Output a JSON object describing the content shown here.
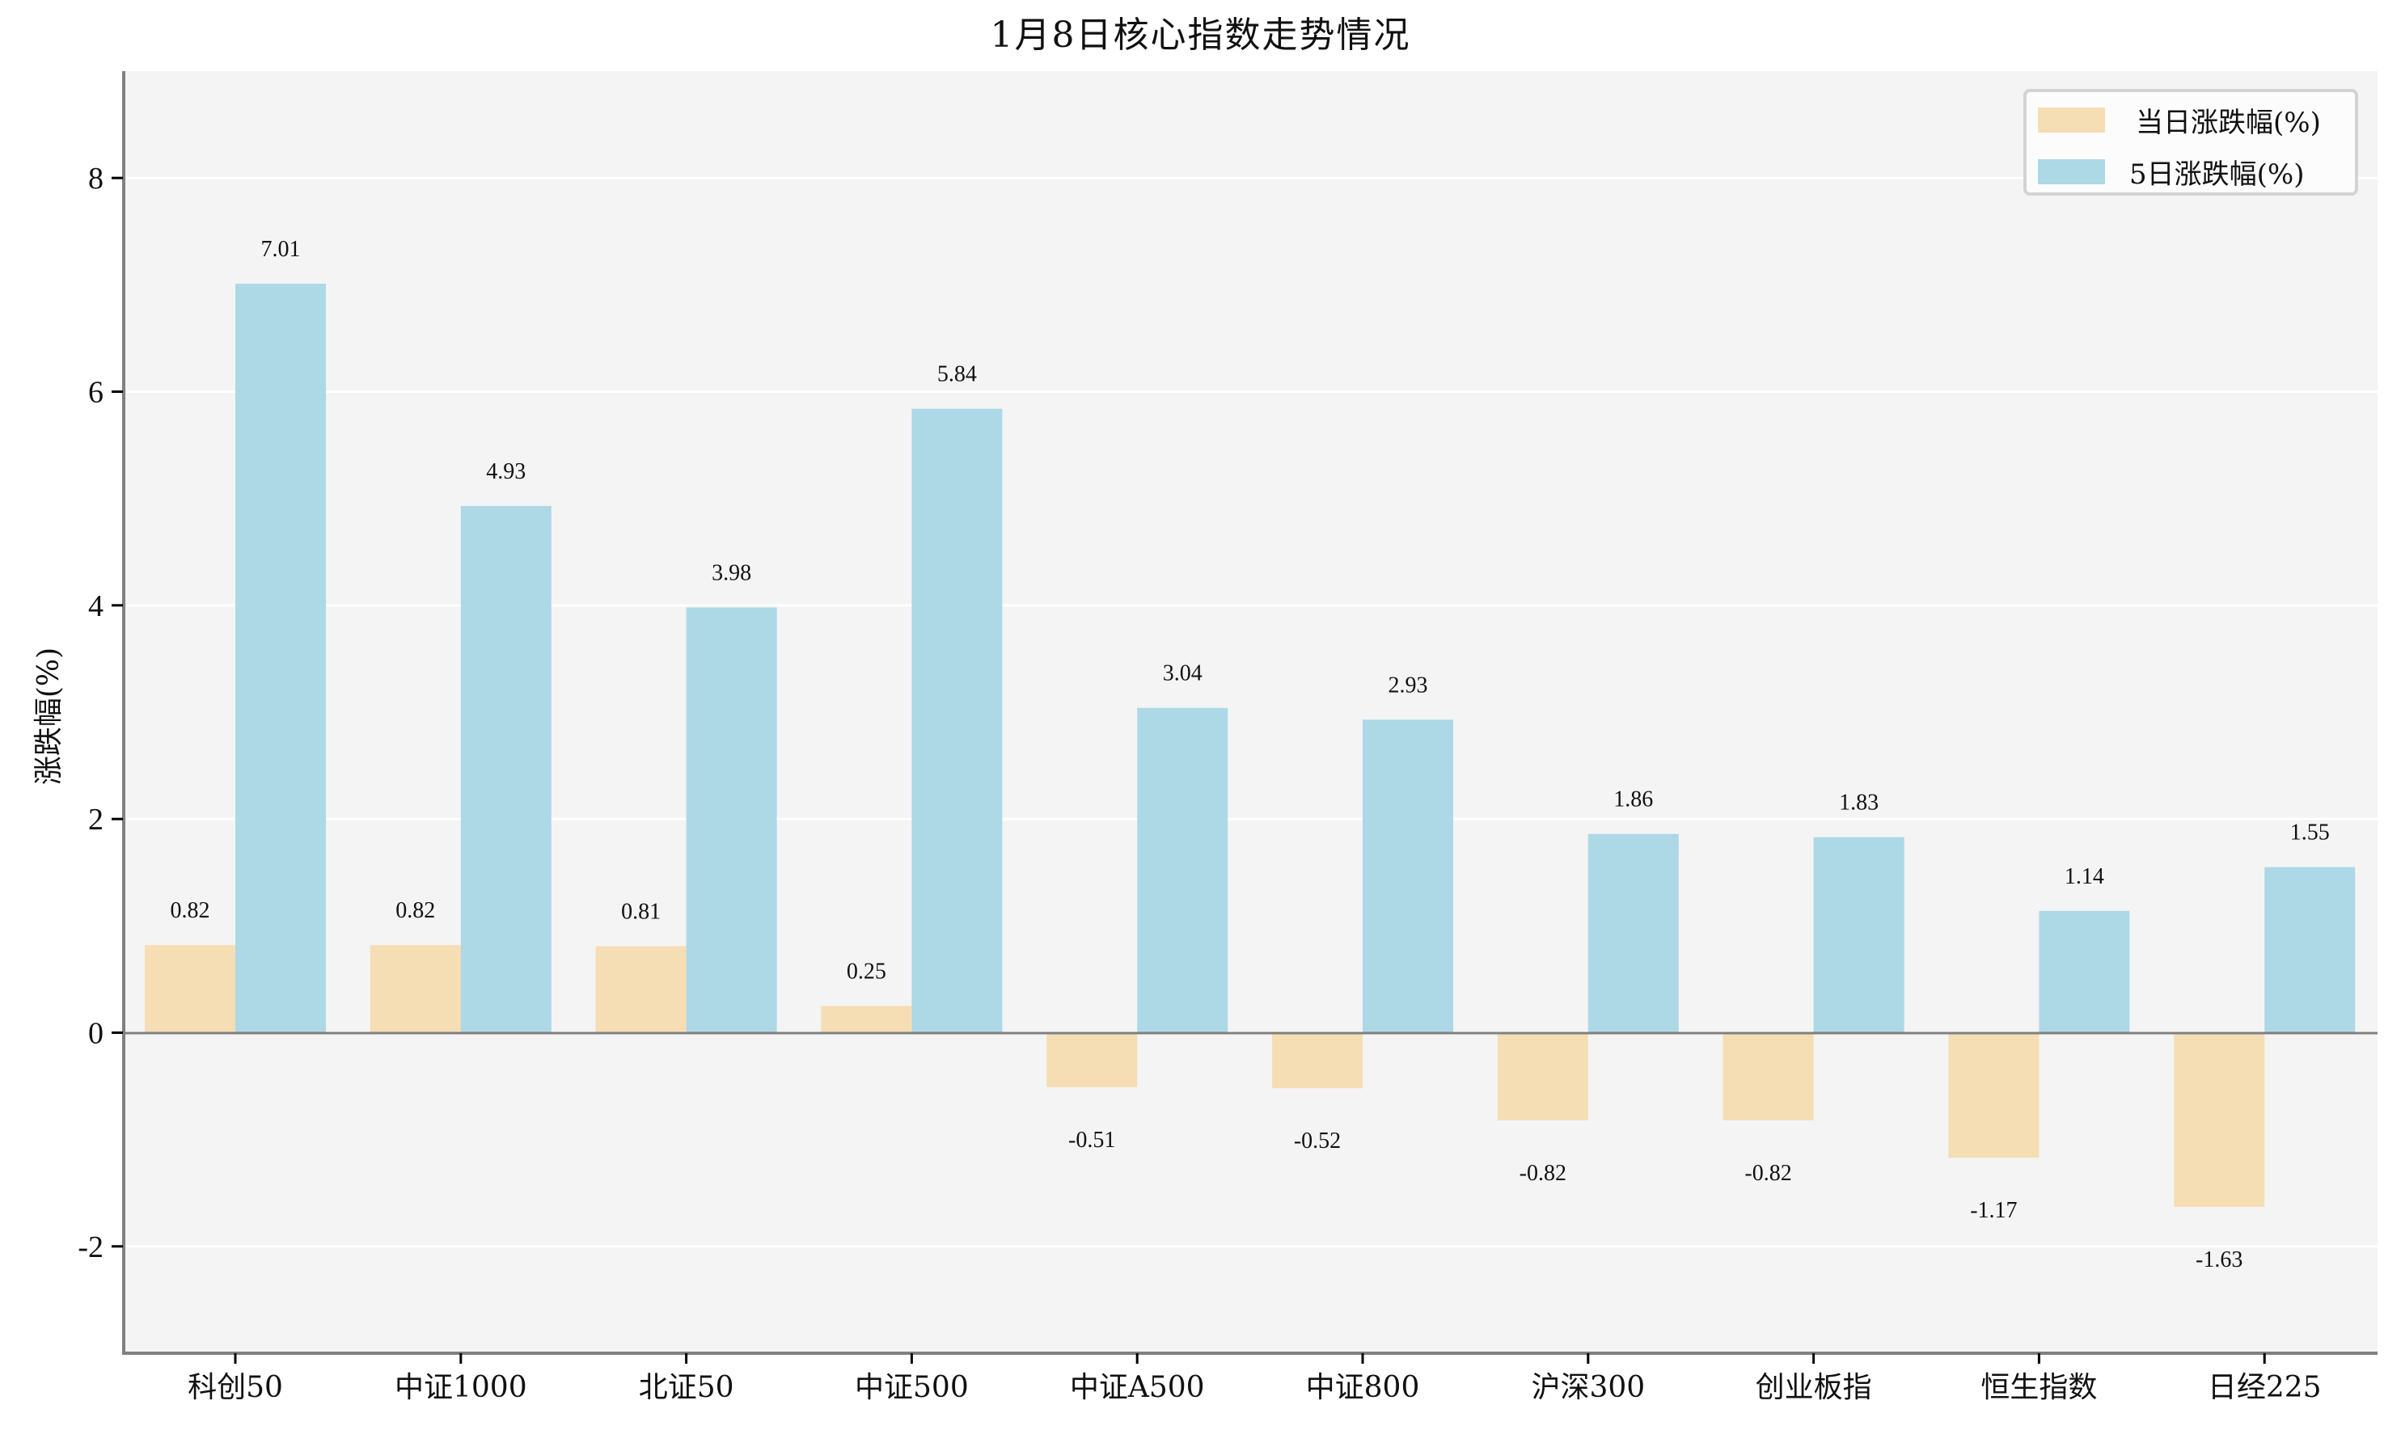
{
  "title": "1月8日核心指数走势情况",
  "colors": {
    "daily": "#F5DEB3",
    "five_day": "#ADD8E6",
    "plot_bg": "#F4F4F4",
    "spine": "#808080",
    "grid": "#FFFFFF",
    "legend_border": "#D3D3D3"
  },
  "legend": {
    "items": [
      {
        "label": "当日涨跌幅(%)",
        "color": "#F5DEB3"
      },
      {
        "label": "5日涨跌幅(%)",
        "color": "#ADD8E6"
      }
    ]
  },
  "y_axis": {
    "label": "涨跌幅(%)",
    "ticks": [
      "-2",
      "0",
      "2",
      "4",
      "6",
      "8"
    ]
  },
  "chart_data": {
    "type": "bar",
    "title": "1月8日核心指数走势情况",
    "xlabel": "",
    "ylabel": "涨跌幅(%)",
    "ylim": [
      -3,
      9
    ],
    "yticks": [
      -2,
      0,
      2,
      4,
      6,
      8
    ],
    "grid": true,
    "grid_axis": "y",
    "legend_position": "upper right",
    "categories": [
      "科创50",
      "中证1000",
      "北证50",
      "中证500",
      "中证A500",
      "中证800",
      "沪深300",
      "创业板指",
      "恒生指数",
      "日经225"
    ],
    "series": [
      {
        "name": "当日涨跌幅(%)",
        "color": "#F5DEB3",
        "values": [
          0.82,
          0.82,
          0.81,
          0.25,
          -0.51,
          -0.52,
          -0.82,
          -0.82,
          -1.17,
          -1.63
        ]
      },
      {
        "name": "5日涨跌幅(%)",
        "color": "#ADD8E6",
        "values": [
          7.01,
          4.93,
          3.98,
          5.84,
          3.04,
          2.93,
          1.86,
          1.83,
          1.14,
          1.55
        ]
      }
    ],
    "data_labels": true
  }
}
